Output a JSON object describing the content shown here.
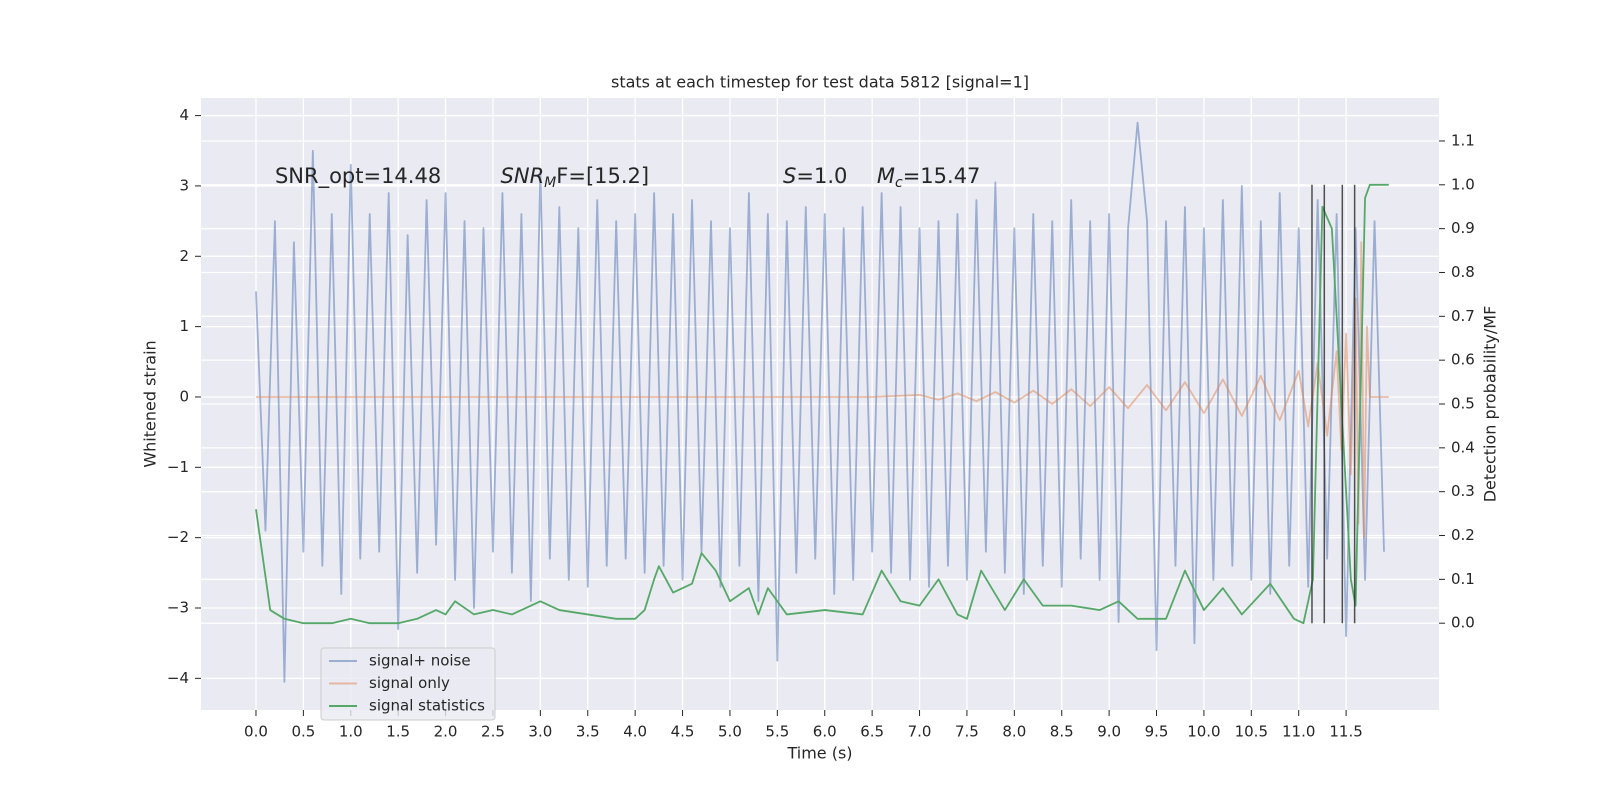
{
  "chart_data": {
    "type": "line",
    "title": "stats at each timestep for test data 5812 [signal=1]",
    "x_label": "Time (s)",
    "y_label": "Whitened strain",
    "y2_label": "Detection probability/MF",
    "xlim": [
      -0.58,
      12.48
    ],
    "ylim": [
      -4.45,
      4.25
    ],
    "y2lim": [
      -0.198,
      1.198
    ],
    "xticks": [
      {
        "value": 0,
        "label": "0.0"
      },
      0.5,
      {
        "value": 1,
        "label": "1.0"
      },
      1.5,
      {
        "value": 2,
        "label": "2.0"
      },
      2.5,
      {
        "value": 3,
        "label": "3.0"
      },
      3.5,
      {
        "value": 4,
        "label": "4.0"
      },
      4.5,
      {
        "value": 5,
        "label": "5.0"
      },
      5.5,
      {
        "value": 6,
        "label": "6.0"
      },
      6.5,
      {
        "value": 7,
        "label": "7.0"
      },
      7.5,
      {
        "value": 8,
        "label": "8.0"
      },
      8.5,
      {
        "value": 9,
        "label": "9.0"
      },
      9.5,
      {
        "value": 10,
        "label": "10.0"
      },
      10.5,
      {
        "value": 11,
        "label": "11.0"
      },
      11.5
    ],
    "yticks": [
      {
        "value": -4,
        "label": "−4"
      },
      {
        "value": -3,
        "label": "−3"
      },
      {
        "value": -2,
        "label": "−2"
      },
      {
        "value": -1,
        "label": "−1"
      },
      0,
      1,
      2,
      3,
      4
    ],
    "y2ticks": [
      {
        "value": 0,
        "label": "0.0"
      },
      0.1,
      0.2,
      0.3,
      0.4,
      0.5,
      0.6,
      0.7,
      0.8,
      0.9,
      {
        "value": 1,
        "label": "1.0"
      },
      1.1
    ],
    "grid": true,
    "legend": "lower left",
    "series": [
      {
        "name": "signal+ noise",
        "color": "#4c72b0",
        "opacity": 0.5,
        "x": [
          0,
          0.1,
          0.2,
          0.3,
          0.4,
          0.5,
          0.6,
          0.7,
          0.8,
          0.9,
          1,
          1.1,
          1.2,
          1.3,
          1.4,
          1.5,
          1.6,
          1.7,
          1.8,
          1.9,
          2,
          2.1,
          2.2,
          2.3,
          2.4,
          2.5,
          2.6,
          2.7,
          2.8,
          2.9,
          3,
          3.1,
          3.2,
          3.3,
          3.4,
          3.5,
          3.6,
          3.7,
          3.8,
          3.9,
          4,
          4.1,
          4.2,
          4.3,
          4.4,
          4.5,
          4.6,
          4.7,
          4.8,
          4.9,
          5,
          5.1,
          5.2,
          5.3,
          5.4,
          5.5,
          5.6,
          5.7,
          5.8,
          5.9,
          6,
          6.1,
          6.2,
          6.3,
          6.4,
          6.5,
          6.6,
          6.7,
          6.8,
          6.9,
          7,
          7.1,
          7.2,
          7.3,
          7.4,
          7.5,
          7.6,
          7.7,
          7.8,
          7.9,
          8,
          8.1,
          8.2,
          8.3,
          8.4,
          8.5,
          8.6,
          8.7,
          8.8,
          8.9,
          9,
          9.1,
          9.2,
          9.3,
          9.4,
          9.5,
          9.6,
          9.7,
          9.8,
          9.9,
          10,
          10.1,
          10.2,
          10.3,
          10.4,
          10.5,
          10.6,
          10.7,
          10.8,
          10.9,
          11,
          11.1,
          11.2,
          11.3,
          11.4,
          11.5,
          11.6,
          11.7,
          11.8,
          11.9
        ],
        "values": [
          1.5,
          -1.9,
          2.5,
          -4.05,
          2.2,
          -2.2,
          3.5,
          -2.4,
          2.6,
          -2.8,
          3.3,
          -2.3,
          2.6,
          -2.2,
          2.9,
          -3.3,
          2.3,
          -2.5,
          2.8,
          -2.1,
          2.9,
          -2.6,
          2.5,
          -3.0,
          2.4,
          -2.2,
          2.9,
          -2.5,
          2.6,
          -2.9,
          3.2,
          -2.3,
          2.7,
          -2.6,
          2.4,
          -2.7,
          2.8,
          -2.4,
          2.5,
          -2.3,
          2.6,
          -2.5,
          2.9,
          -2.4,
          2.6,
          -2.6,
          2.8,
          -2.2,
          2.5,
          -2.7,
          2.4,
          -2.4,
          2.9,
          -2.9,
          2.6,
          -3.75,
          2.5,
          -2.5,
          2.7,
          -2.3,
          2.6,
          -2.8,
          2.4,
          -2.6,
          2.7,
          -2.2,
          2.9,
          -2.5,
          2.7,
          -2.6,
          2.4,
          -2.7,
          2.5,
          -2.4,
          2.6,
          -2.6,
          2.8,
          -2.2,
          3.05,
          -2.5,
          2.4,
          -2.8,
          2.6,
          -2.4,
          2.5,
          -2.7,
          2.8,
          -2.3,
          2.5,
          -2.6,
          2.6,
          -3.2,
          2.4,
          3.9,
          2.5,
          -3.6,
          2.5,
          -2.4,
          2.7,
          -3.5,
          2.4,
          -2.6,
          2.8,
          -2.4,
          3.0,
          -2.6,
          2.5,
          -2.8,
          2.9,
          -2.4,
          2.4,
          -2.7,
          2.8,
          -2.3,
          2.6,
          -3.4,
          2.4,
          -2.6,
          2.5,
          -2.2
        ]
      },
      {
        "name": "signal only",
        "color": "#dd8452",
        "opacity": 0.5,
        "x": [
          0,
          6.5,
          7.0,
          7.2,
          7.4,
          7.6,
          7.8,
          8.0,
          8.2,
          8.4,
          8.6,
          8.8,
          9.0,
          9.2,
          9.4,
          9.6,
          9.8,
          10.0,
          10.2,
          10.4,
          10.6,
          10.8,
          11.0,
          11.1,
          11.2,
          11.3,
          11.4,
          11.45,
          11.5,
          11.55,
          11.6,
          11.63,
          11.66,
          11.69,
          11.72,
          11.75,
          11.95
        ],
        "values": [
          0,
          0,
          0.03,
          -0.04,
          0.05,
          -0.06,
          0.07,
          -0.08,
          0.09,
          -0.1,
          0.11,
          -0.13,
          0.14,
          -0.16,
          0.17,
          -0.19,
          0.21,
          -0.23,
          0.25,
          -0.27,
          0.3,
          -0.33,
          0.37,
          -0.42,
          0.48,
          -0.55,
          0.65,
          -0.75,
          0.9,
          -1.1,
          1.4,
          -1.8,
          2.2,
          -2.0,
          1.0,
          0,
          0
        ]
      },
      {
        "name": "signal statistics",
        "color": "#55a868",
        "opacity": 1,
        "axis": "y2",
        "x": [
          0,
          0.15,
          0.3,
          0.5,
          0.8,
          1.0,
          1.2,
          1.5,
          1.7,
          1.9,
          2.0,
          2.1,
          2.3,
          2.5,
          2.7,
          3.0,
          3.2,
          3.5,
          3.8,
          4.0,
          4.1,
          4.2,
          4.25,
          4.4,
          4.6,
          4.7,
          4.85,
          5.0,
          5.2,
          5.3,
          5.4,
          5.6,
          6.0,
          6.4,
          6.6,
          6.8,
          7.0,
          7.2,
          7.4,
          7.5,
          7.65,
          7.9,
          8.1,
          8.3,
          8.6,
          8.9,
          9.1,
          9.3,
          9.6,
          9.8,
          10.0,
          10.2,
          10.4,
          10.7,
          10.95,
          11.05,
          11.15,
          11.25,
          11.35,
          11.55,
          11.6,
          11.7,
          11.75,
          11.95
        ],
        "values": [
          0.26,
          0.03,
          0.01,
          0.0,
          0.0,
          0.01,
          0.0,
          0.0,
          0.01,
          0.03,
          0.02,
          0.05,
          0.02,
          0.03,
          0.02,
          0.05,
          0.03,
          0.02,
          0.01,
          0.01,
          0.03,
          0.1,
          0.13,
          0.07,
          0.09,
          0.16,
          0.12,
          0.05,
          0.08,
          0.02,
          0.08,
          0.02,
          0.03,
          0.02,
          0.12,
          0.05,
          0.04,
          0.1,
          0.02,
          0.01,
          0.12,
          0.03,
          0.1,
          0.04,
          0.04,
          0.03,
          0.05,
          0.01,
          0.01,
          0.12,
          0.03,
          0.08,
          0.02,
          0.09,
          0.01,
          0.0,
          0.1,
          0.95,
          0.9,
          0.1,
          0.04,
          0.97,
          1.0,
          1.0
        ]
      }
    ],
    "vlines": {
      "x": [
        11.14,
        11.27,
        11.46,
        11.59
      ],
      "ymin": 0,
      "ymax": 1,
      "axis": "y2",
      "color": "#333333"
    },
    "annotations": [
      {
        "x": 0.2,
        "y": 3.13,
        "text": "SNR_opt=14.48"
      },
      {
        "x": 2.58,
        "y": 3.13,
        "italic": "SNR",
        "sub": "M",
        "text": "F=[15.2]"
      },
      {
        "x": 5.56,
        "y": 3.13,
        "italic": "S",
        "text": "=1.0"
      },
      {
        "x": 6.55,
        "y": 3.13,
        "italic": "M",
        "sub": "c",
        "text": "=15.47"
      }
    ]
  }
}
